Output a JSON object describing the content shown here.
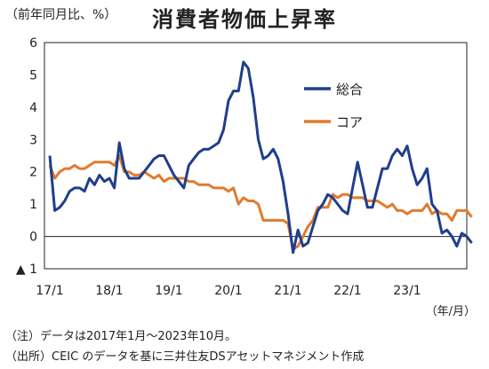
{
  "header": {
    "unit_label": "（前年同月比、%）",
    "title": "消費者物価上昇率"
  },
  "notes": {
    "note1": "（注）データは2017年1月～2023年10月。",
    "note2": "（出所）CEIC のデータを基に三井住友DSアセットマネジメント作成"
  },
  "chart_data": {
    "type": "line",
    "xlabel": "（年/月）",
    "ylabel": "",
    "ylim": [
      -1,
      6
    ],
    "yticks": [
      6,
      5,
      4,
      3,
      2,
      1,
      0,
      -1
    ],
    "ytick_labels": [
      "6",
      "5",
      "4",
      "3",
      "2",
      "1",
      "0",
      "▲ 1"
    ],
    "xticks": [
      "17/1",
      "18/1",
      "19/1",
      "20/1",
      "21/1",
      "22/1",
      "23/1"
    ],
    "grid": false,
    "legend_position": "top-right",
    "series": [
      {
        "name": "総合",
        "color": "#1f3e8c",
        "values": [
          2.5,
          0.8,
          0.9,
          1.1,
          1.4,
          1.5,
          1.5,
          1.4,
          1.8,
          1.6,
          1.9,
          1.7,
          1.8,
          1.5,
          2.9,
          2.1,
          1.8,
          1.8,
          1.8,
          2.0,
          2.2,
          2.4,
          2.5,
          2.5,
          2.2,
          1.9,
          1.7,
          1.5,
          2.2,
          2.4,
          2.6,
          2.7,
          2.7,
          2.8,
          2.9,
          3.3,
          4.2,
          4.5,
          4.5,
          5.4,
          5.2,
          4.3,
          3.0,
          2.4,
          2.5,
          2.7,
          2.4,
          1.7,
          0.7,
          -0.5,
          0.2,
          -0.3,
          -0.2,
          0.3,
          0.8,
          1.0,
          1.3,
          1.2,
          1.0,
          0.8,
          0.7,
          1.5,
          2.3,
          1.6,
          0.9,
          0.9,
          1.5,
          2.1,
          2.1,
          2.5,
          2.7,
          2.5,
          2.8,
          2.1,
          1.6,
          1.8,
          2.1,
          1.0,
          0.8,
          0.1,
          0.2,
          0.0,
          -0.3,
          0.1,
          0.0,
          -0.2
        ]
      },
      {
        "name": "コア",
        "color": "#e07b2e",
        "values": [
          2.2,
          1.8,
          2.0,
          2.1,
          2.1,
          2.2,
          2.1,
          2.1,
          2.2,
          2.3,
          2.3,
          2.3,
          2.3,
          2.2,
          2.5,
          2.0,
          2.0,
          1.9,
          1.9,
          2.0,
          1.9,
          1.8,
          1.9,
          1.7,
          1.8,
          1.8,
          1.8,
          1.8,
          1.7,
          1.7,
          1.6,
          1.6,
          1.6,
          1.5,
          1.5,
          1.5,
          1.4,
          1.5,
          1.0,
          1.2,
          1.1,
          1.1,
          1.0,
          0.5,
          0.5,
          0.5,
          0.5,
          0.5,
          0.4,
          -0.4,
          -0.3,
          0.0,
          0.3,
          0.5,
          0.9,
          0.9,
          0.9,
          1.3,
          1.2,
          1.3,
          1.3,
          1.2,
          1.2,
          1.2,
          1.1,
          1.1,
          1.1,
          1.0,
          0.9,
          1.0,
          0.8,
          0.8,
          0.7,
          0.8,
          0.8,
          0.8,
          1.0,
          0.7,
          0.8,
          0.7,
          0.7,
          0.5,
          0.8,
          0.8,
          0.8,
          0.6
        ]
      }
    ]
  }
}
